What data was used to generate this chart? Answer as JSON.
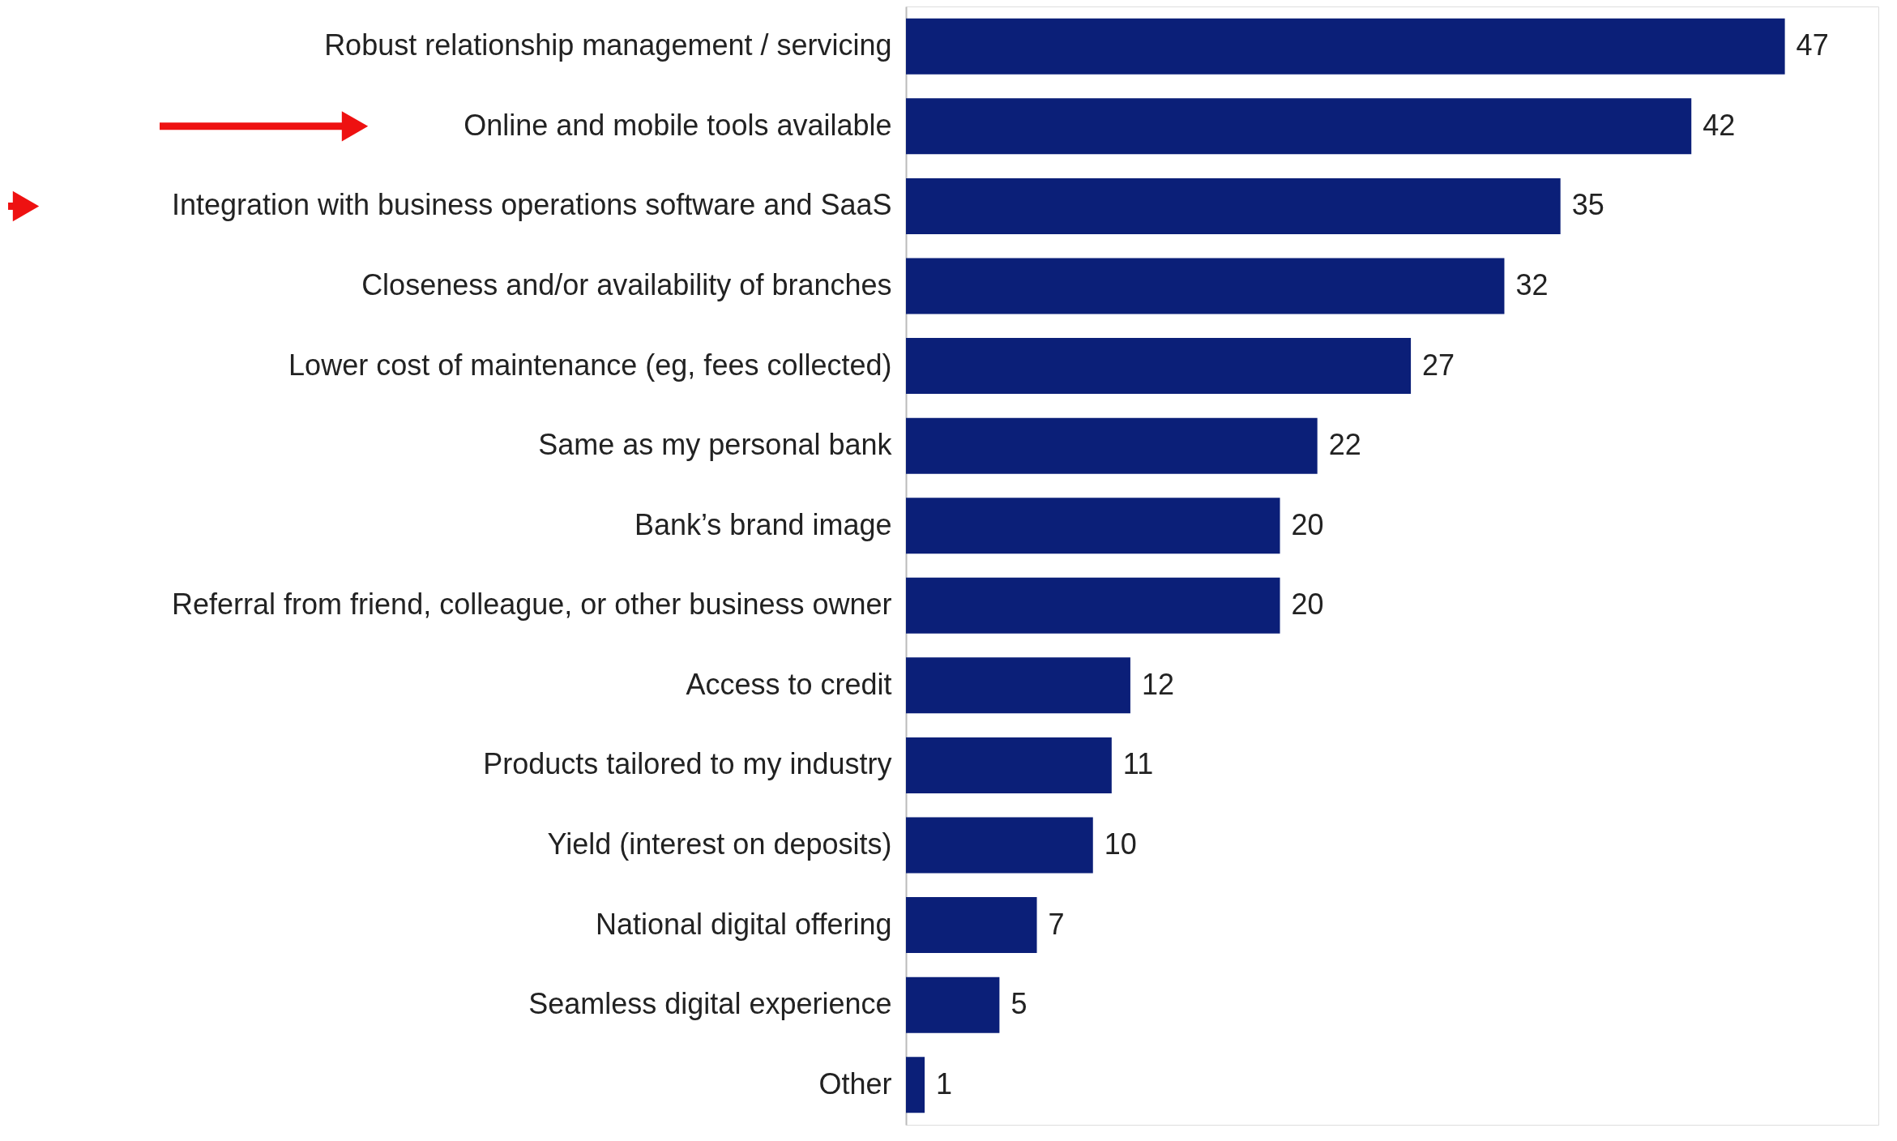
{
  "chart_data": {
    "type": "bar",
    "orientation": "horizontal",
    "categories": [
      "Robust relationship management / servicing",
      "Online and mobile tools available",
      "Integration with business operations software and SaaS",
      "Closeness and/or availability of branches",
      "Lower cost of maintenance (eg, fees collected)",
      "Same as my personal bank",
      "Bank’s brand image",
      "Referral from friend, colleague, or other business owner",
      "Access to credit",
      "Products tailored to my industry",
      "Yield (interest on deposits)",
      "National digital offering",
      "Seamless digital experience",
      "Other"
    ],
    "values": [
      47,
      42,
      35,
      32,
      27,
      22,
      20,
      20,
      12,
      11,
      10,
      7,
      5,
      1
    ],
    "color": "#0b1f78",
    "xlim": [
      0,
      52
    ],
    "data_labels": true,
    "tick_labels": "y",
    "grid": false
  }
}
